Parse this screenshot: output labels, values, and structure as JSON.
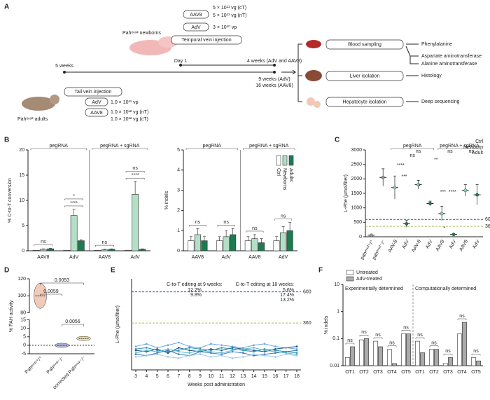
{
  "panel_a": {
    "label": "A",
    "newborns": "Pahᵉⁿᵘ² newborns",
    "aav8": "AAV8",
    "adv": "AdV",
    "dose_ct": "5 × 10¹¹ vg (cT)",
    "dose_nt": "5 × 10¹¹ vg (nT)",
    "dose_vp": "3 × 10¹⁰ vp",
    "temporal": "Temporal vein injection",
    "day1": "Day 1",
    "four_weeks": "4 weeks (AdV and AAV8)",
    "five_weeks": "5 weeks",
    "tail": "Tail vein injection",
    "adult_adv": "AdV",
    "adult_aav8": "AAV8",
    "adult_vp": "1.0 × 10¹¹ vp",
    "adult_nt": "1.0 × 10¹² vg (nT)",
    "adult_ct": "1.0 × 10¹² vg (cT)",
    "adults": "Pahᵉⁿᵘ² adults",
    "nine_weeks": "9 weeks (AdV)",
    "sixteen_weeks": "16 weeks (AAV8)",
    "blood": "Blood sampling",
    "liver": "Liver isolation",
    "hepatocyte": "Hepatocyte isolation",
    "phe": "Phenylalanine",
    "ast": "Aspartate aminotransferase",
    "alt": "Alanine aminotransferase",
    "histology": "Histology",
    "sequencing": "Deep sequencing"
  },
  "chart_data": [
    {
      "type": "bar",
      "panel": "B",
      "ylabel": "% C-to-T conversion",
      "groups": [
        "pegRNA",
        "pegRNA + sgRNA"
      ],
      "divider": "solid",
      "categories": [
        "AAV8",
        "AdV",
        "AAV8",
        "AdV"
      ],
      "series": [
        {
          "color": "#ffffff",
          "values": [
            0.1,
            0.1,
            0.1,
            0.1
          ]
        },
        {
          "color": "#b3dfc6",
          "values": [
            0.3,
            7.0,
            0.2,
            11.2
          ],
          "errors": [
            0.1,
            1.2,
            0.1,
            2.5
          ]
        },
        {
          "color": "#1e7a52",
          "values": [
            0.4,
            2.0,
            0.3,
            0.3
          ],
          "errors": [
            0.1,
            0.2,
            0.1,
            0.1
          ]
        }
      ],
      "ylim": [
        0,
        20
      ],
      "yticks": [
        0,
        5,
        10,
        15,
        20
      ],
      "annotations": [
        "ns",
        "****",
        "*",
        "ns",
        "****",
        "ns"
      ]
    },
    {
      "type": "bar",
      "ylabel": "% indels",
      "groups": [
        "pegRNA",
        "pegRNA + sgRNA"
      ],
      "divider": "solid",
      "categories": [
        "AAV8",
        "AdV",
        "AAV8",
        "AdV"
      ],
      "series": [
        {
          "name": "Ctrl",
          "color": "#ffffff",
          "values": [
            0.5,
            0.5,
            0.5,
            0.5
          ],
          "errors": [
            0.2,
            0.2,
            0.2,
            0.2
          ]
        },
        {
          "name": "Newborns",
          "color": "#b3dfc6",
          "values": [
            0.8,
            0.7,
            0.6,
            0.9
          ],
          "errors": [
            0.3,
            0.3,
            0.2,
            0.3
          ]
        },
        {
          "name": "Adults",
          "color": "#1e7a52",
          "values": [
            0.5,
            0.8,
            0.4,
            1.0
          ],
          "errors": [
            0.2,
            0.3,
            0.2,
            0.4
          ]
        }
      ],
      "ylim": [
        0,
        5
      ],
      "yticks": [
        0,
        1,
        2,
        3,
        4,
        5
      ],
      "legend": "upper right",
      "annotations": [
        "ns",
        "ns",
        "ns",
        "ns"
      ]
    },
    {
      "type": "dot",
      "panel": "C",
      "ylabel": "L-Phe (µmol/liter)",
      "groups": [
        "pegRNA",
        "pegRNA + sgRNA"
      ],
      "categories": [
        "pahᵉⁿᵘ²⁺/⁺",
        "pahᵉⁿᵘ²⁻/⁻",
        "AAV-8",
        "AdV",
        "AAV-8",
        "AdV",
        "AAV8",
        "AdV",
        "AAV8",
        "AdV"
      ],
      "values": [
        50,
        2050,
        1700,
        450,
        1800,
        1150,
        800,
        80,
        1600,
        1450
      ],
      "errors": [
        20,
        300,
        400,
        120,
        150,
        80,
        250,
        30,
        200,
        350
      ],
      "colors": [
        "#999999",
        "#999999",
        "#8fd0b0",
        "#1e7a52",
        "#8fd0b0",
        "#1e7a52",
        "#8fd0b0",
        "#1e7a52",
        "#8fd0b0",
        "#1e7a52"
      ],
      "legend": [
        "Ctrl",
        "Newborn",
        "Adult"
      ],
      "legend_colors": [
        "#aaaaaa",
        "#8fd0b0",
        "#1e7a52"
      ],
      "ylim": [
        0,
        3000
      ],
      "yticks": [
        0,
        500,
        1000,
        1500,
        2000,
        2500,
        3000
      ],
      "reference_lines": [
        {
          "value": 600,
          "color": "#2255aa"
        },
        {
          "value": 360,
          "color": "#a8c060"
        }
      ],
      "annotations": [
        "ns",
        "****",
        "***",
        "ns",
        "**",
        "ns",
        "*",
        "***",
        "****",
        "*",
        "ns"
      ]
    },
    {
      "type": "violin",
      "panel": "D",
      "ylabel": "% PAH activity",
      "categories": [
        "Pahᵉⁿᵘ²⁺/⁺",
        "Pahᵉⁿᵘ²⁻/⁻",
        "corrected Pahᵉⁿᵘ²⁻/⁻"
      ],
      "values": [
        100,
        0,
        4
      ],
      "colors": [
        "#e8a68a",
        "#8a8fd0",
        "#e8d070"
      ],
      "ylim": [
        -5,
        120
      ],
      "break": [
        15,
        80
      ],
      "yticks": [
        -5,
        0,
        5,
        10,
        15,
        80,
        100,
        120
      ],
      "annotations": [
        "0.0059",
        "0.0053",
        "0.0056"
      ]
    },
    {
      "type": "line",
      "panel": "E",
      "ylabel": "L-Phe (µmol/liter)",
      "xlabel": "Weeks post administration",
      "x": [
        3,
        4,
        5,
        6,
        7,
        8,
        9,
        10,
        11,
        12,
        13,
        14,
        15,
        16,
        17,
        18
      ],
      "xlim": [
        3,
        18
      ],
      "xticks": [
        3,
        4,
        5,
        6,
        7,
        8,
        9,
        10,
        11,
        12,
        13,
        14,
        15,
        16,
        17,
        18
      ],
      "ylim": [
        0,
        700
      ],
      "series": [
        {
          "color": "#1b4f8a",
          "values": [
            150,
            140,
            160,
            130,
            170,
            150,
            140,
            160,
            150,
            170,
            160,
            150,
            140,
            160,
            170,
            180
          ]
        },
        {
          "color": "#3a78c0",
          "values": [
            120,
            110,
            130,
            150,
            120,
            110,
            140,
            130,
            120,
            140,
            130,
            110,
            120,
            130,
            140,
            150
          ]
        },
        {
          "color": "#6aa8e0",
          "values": [
            180,
            200,
            170,
            190,
            210,
            180,
            170,
            200,
            190,
            180,
            170,
            190,
            200,
            180,
            170,
            160
          ]
        },
        {
          "color": "#9ac8ea",
          "values": [
            100,
            110,
            120,
            100,
            90,
            110,
            120,
            100,
            110,
            90,
            100,
            120,
            110,
            100,
            120,
            110
          ]
        },
        {
          "color": "#2a93b0",
          "values": [
            160,
            170,
            150,
            140,
            150,
            170,
            160,
            150,
            170,
            160,
            150,
            140,
            160,
            150,
            140,
            130
          ]
        },
        {
          "color": "#5fb8c8",
          "values": [
            130,
            150,
            140,
            160,
            140,
            130,
            150,
            140,
            130,
            150,
            160,
            170,
            150,
            140,
            130,
            120
          ]
        }
      ],
      "reference_lines": [
        {
          "value": 600,
          "color": "#2255aa"
        },
        {
          "value": 360,
          "color": "#a8c060"
        }
      ],
      "annotations": [
        {
          "text": "C-to-T editing at 9 weeks:",
          "color": "#333333"
        },
        {
          "text": "12.2%",
          "color": "#3a78c0"
        },
        {
          "text": "9.8%",
          "color": "#6aa8e0"
        },
        {
          "text": "C-to-T editing at 18 weeks:",
          "color": "#333333"
        },
        {
          "text": "5.6%",
          "color": "#1b4f8a"
        },
        {
          "text": "17.4%",
          "color": "#3a78c0"
        },
        {
          "text": "13.2%",
          "color": "#9ac8ea"
        }
      ]
    },
    {
      "type": "bar",
      "panel": "F",
      "ylabel": "% indels",
      "log": true,
      "groups": [
        "Experimentally determined",
        "Computationally determined"
      ],
      "divider": "dashed",
      "categories": [
        "OT1",
        "OT2",
        "OT3",
        "OT4",
        "OT5",
        "OT1",
        "OT2",
        "OT3",
        "OT4",
        "OT5"
      ],
      "series": [
        {
          "name": "Untreated",
          "color": "#ffffff",
          "values": [
            0.02,
            0.09,
            0.08,
            0.04,
            0.15,
            0.08,
            0.04,
            0.012,
            0.15,
            0.02
          ]
        },
        {
          "name": "AdV-treated",
          "color": "#aaaaaa",
          "values": [
            0.05,
            0.1,
            0.05,
            0.012,
            0.15,
            0.03,
            0.04,
            0.02,
            0.4,
            0.015
          ]
        }
      ],
      "ylim": [
        0.01,
        10
      ],
      "yticks": [
        0.01,
        0.1,
        1,
        10
      ],
      "legend": "upper left",
      "annotations": [
        "ns",
        "ns",
        "ns",
        "ns",
        "ns",
        "ns",
        "ns",
        "ns",
        "ns",
        "ns"
      ]
    }
  ]
}
